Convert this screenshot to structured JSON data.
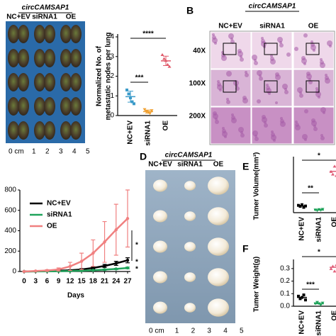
{
  "figure": {
    "panel_labels": [
      "B",
      "D",
      "E",
      "F"
    ],
    "a": {
      "header": "circCAMSAP1",
      "columns": [
        "NC+EV",
        "siRNA1",
        "OE"
      ],
      "scale": [
        "0 cm",
        "1",
        "2",
        "3",
        "4",
        "5"
      ]
    },
    "b": {
      "header": "circCAMSAP1",
      "columns": [
        "NC+EV",
        "siRNA1",
        "OE"
      ],
      "rows": [
        "40X",
        "100X",
        "200X"
      ]
    },
    "d": {
      "header": "circCAMSAP1",
      "columns": [
        "NC+EV",
        "siRNA1",
        "OE"
      ],
      "scale": [
        "0 cm",
        "1",
        "2",
        "3",
        "4",
        "5"
      ]
    }
  },
  "chart_data": [
    {
      "type": "dot",
      "ylabel": [
        "Normalized No. of",
        "metastatic nodes per lung"
      ],
      "categories": [
        "NC+EV",
        "siRNA1",
        "OE"
      ],
      "colors": [
        "#3a9ac9",
        "#f0a030",
        "#e05a6a"
      ],
      "points": [
        [
          1.3,
          1.1,
          0.9,
          0.7,
          0.6
        ],
        [
          0.3,
          0.2,
          0.15,
          0.1,
          0.25
        ],
        [
          3.1,
          2.9,
          2.8,
          2.6,
          2.5
        ]
      ],
      "values": [
        0.96,
        0.2,
        2.78
      ],
      "errors": [
        0.28,
        0.08,
        0.24
      ],
      "ylim": [
        0,
        4
      ],
      "yticks": [
        0,
        1,
        2,
        3,
        4
      ],
      "annotations": [
        "****",
        "***"
      ]
    },
    {
      "type": "line",
      "xlabel": "Days",
      "x": [
        0,
        3,
        6,
        9,
        12,
        15,
        18,
        21,
        24,
        27
      ],
      "xlim": [
        0,
        27
      ],
      "xticks": [
        0,
        3,
        6,
        9,
        12,
        15,
        18,
        21,
        24,
        27
      ],
      "ylim": [
        0,
        800
      ],
      "yticks": [
        0,
        200,
        400,
        600,
        800
      ],
      "series": [
        {
          "name": "NC+EV",
          "color": "#000000",
          "values": [
            0,
            2,
            5,
            8,
            12,
            20,
            35,
            55,
            80,
            110
          ],
          "errors": [
            0,
            1,
            2,
            3,
            5,
            8,
            10,
            15,
            20,
            25
          ]
        },
        {
          "name": "siRNA1",
          "color": "#1fa35a",
          "values": [
            0,
            1,
            2,
            3,
            5,
            8,
            12,
            18,
            25,
            35
          ],
          "errors": [
            0,
            1,
            1,
            2,
            2,
            3,
            4,
            5,
            6,
            8
          ]
        },
        {
          "name": "OE",
          "color": "#f08080",
          "values": [
            0,
            5,
            10,
            20,
            50,
            100,
            180,
            290,
            410,
            520
          ],
          "errors": [
            0,
            3,
            8,
            15,
            40,
            80,
            130,
            200,
            250,
            280
          ]
        }
      ],
      "annotations": [
        "*",
        "*",
        "*"
      ]
    },
    {
      "type": "dot",
      "ylabel": "Tumer Volume(mm³)",
      "categories": [
        "NC+EV",
        "siRNA1",
        "OE"
      ],
      "colors": [
        "#000000",
        "#1fa35a",
        "#e0607a"
      ],
      "points": [
        [
          110,
          95,
          120,
          80,
          100
        ],
        [
          40,
          30,
          45,
          35,
          50
        ],
        [
          620,
          580,
          700,
          560,
          650
        ]
      ],
      "values": [
        101,
        40,
        622
      ],
      "ylim": [
        0,
        800
      ],
      "annotations": [
        "**",
        "*"
      ]
    },
    {
      "type": "dot",
      "ylabel": "Tumer Weight(g)",
      "categories": [
        "NC+EV",
        "siRNA1",
        "OE"
      ],
      "colors": [
        "#000000",
        "#1fa35a",
        "#e0607a"
      ],
      "points": [
        [
          0.08,
          0.06,
          0.07,
          0.09,
          0.05
        ],
        [
          0.02,
          0.03,
          0.02,
          0.01,
          0.025
        ],
        [
          0.3,
          0.32,
          0.28,
          0.33,
          0.31
        ]
      ],
      "values": [
        0.07,
        0.02,
        0.31
      ],
      "ylim": [
        0,
        0.35
      ],
      "yticks": [
        {
          "value": 0,
          "label": "0.0"
        },
        0.1,
        0.2,
        0.3
      ],
      "annotations": [
        "***",
        "*"
      ]
    }
  ]
}
